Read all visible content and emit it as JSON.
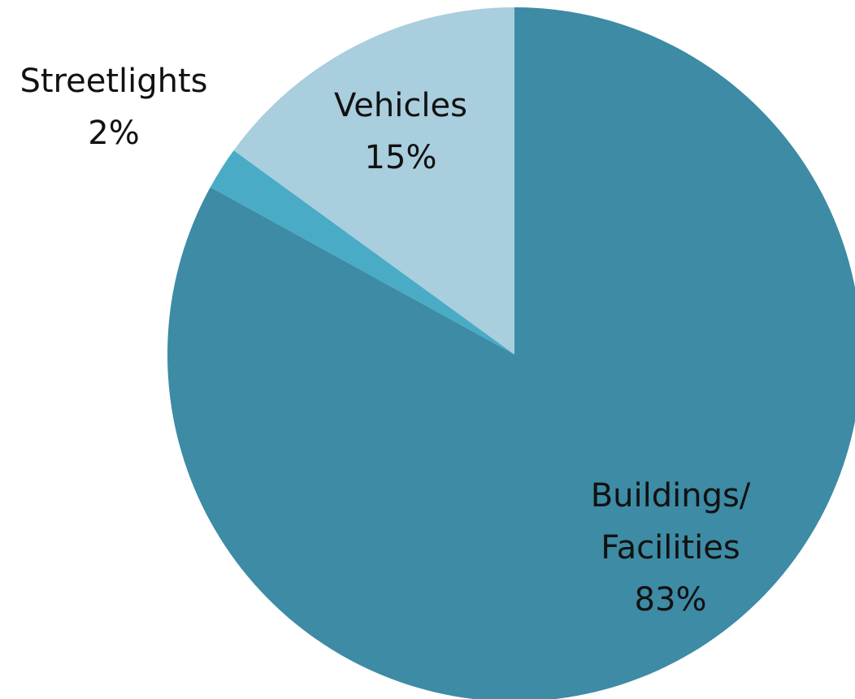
{
  "chart_data": {
    "type": "pie",
    "categories": [
      "Buildings/ Facilities",
      "Streetlights",
      "Vehicles"
    ],
    "values": [
      83,
      2,
      15
    ],
    "value_labels": [
      "83%",
      "2%",
      "15%"
    ],
    "colors": [
      "#3d8ba5",
      "#4aabc6",
      "#a9cedd"
    ]
  }
}
